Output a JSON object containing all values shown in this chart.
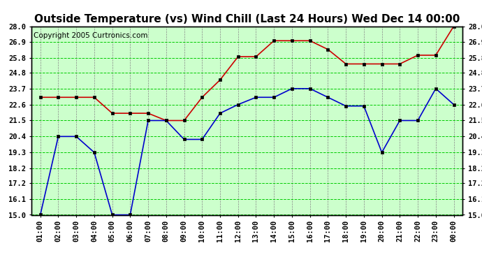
{
  "title": "Outside Temperature (vs) Wind Chill (Last 24 Hours) Wed Dec 14 00:00",
  "copyright": "Copyright 2005 Curtronics.com",
  "x_labels": [
    "01:00",
    "02:00",
    "03:00",
    "04:00",
    "05:00",
    "06:00",
    "07:00",
    "08:00",
    "09:00",
    "10:00",
    "11:00",
    "12:00",
    "13:00",
    "14:00",
    "15:00",
    "16:00",
    "17:00",
    "18:00",
    "19:00",
    "20:00",
    "21:00",
    "22:00",
    "23:00",
    "00:00"
  ],
  "red_data": [
    23.1,
    23.1,
    23.1,
    23.1,
    22.0,
    22.0,
    22.0,
    21.5,
    21.5,
    23.1,
    24.3,
    25.9,
    25.9,
    27.0,
    27.0,
    27.0,
    26.4,
    25.4,
    25.4,
    25.4,
    25.4,
    26.0,
    26.0,
    28.0
  ],
  "blue_data": [
    15.0,
    20.4,
    20.4,
    19.3,
    15.0,
    15.0,
    21.5,
    21.5,
    20.2,
    20.2,
    22.0,
    22.6,
    23.1,
    23.1,
    23.7,
    23.7,
    23.1,
    22.5,
    22.5,
    19.3,
    21.5,
    21.5,
    23.7,
    22.6
  ],
  "red_color": "#cc0000",
  "blue_color": "#0000cc",
  "bg_color": "#ccffcc",
  "grid_minor_color": "#00cc00",
  "grid_major_color": "#888888",
  "ylim": [
    15.0,
    28.0
  ],
  "yticks": [
    15.0,
    16.1,
    17.2,
    18.2,
    19.3,
    20.4,
    21.5,
    22.6,
    23.7,
    24.8,
    25.8,
    26.9,
    28.0
  ],
  "title_fontsize": 11,
  "copyright_fontsize": 7.5,
  "tick_fontsize": 7.5,
  "border_color": "#000000"
}
